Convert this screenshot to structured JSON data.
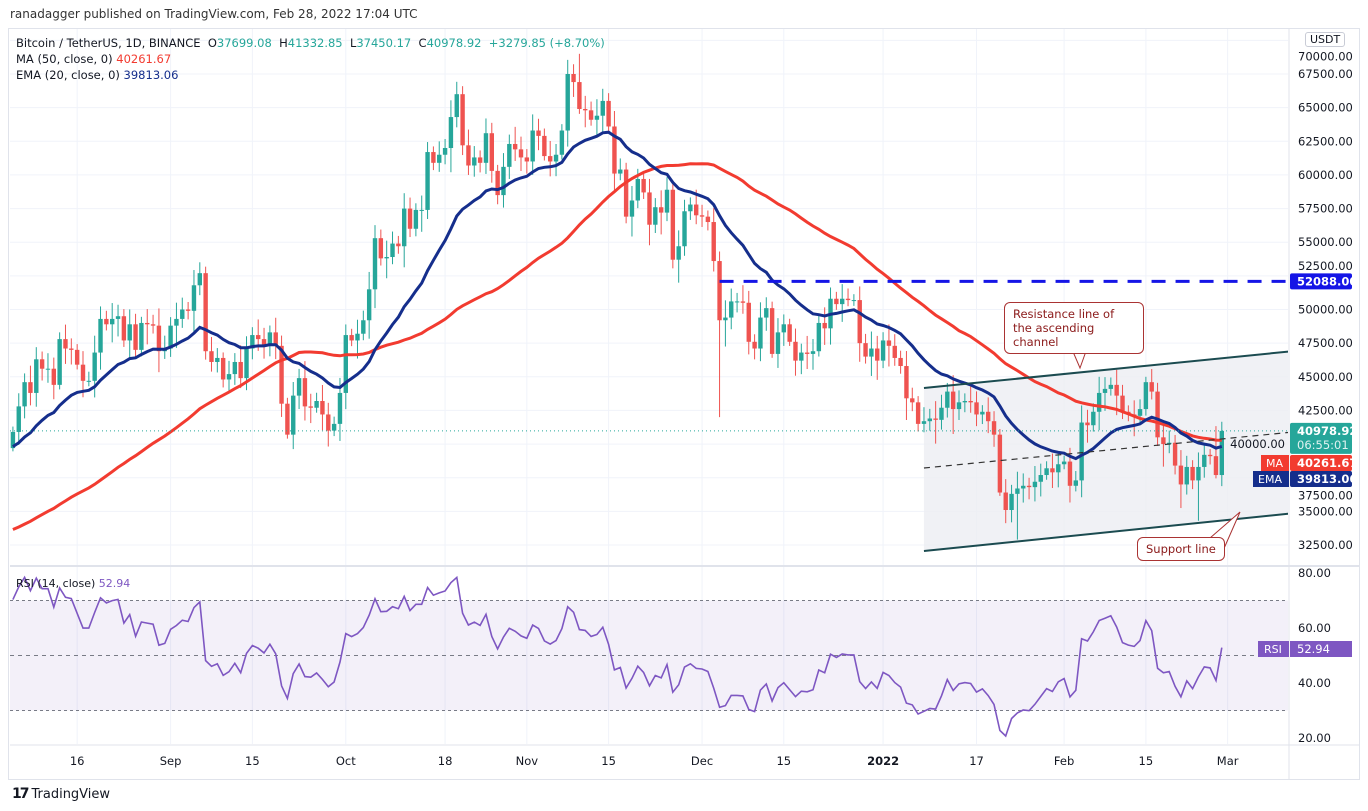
{
  "header": {
    "published": "ranadagger published on TradingView.com, Feb 28, 2022 17:04 UTC",
    "symbol": "Bitcoin / TetherUS, 1D, BINANCE",
    "o_label": "O",
    "o": "37699.08",
    "h_label": "H",
    "h": "41332.85",
    "l_label": "L",
    "l": "37450.17",
    "c_label": "C",
    "c": "40978.92",
    "change": "+3279.85 (+8.70%)",
    "ma_label": "MA (50, close, 0)",
    "ma_value": "40261.67",
    "ema_label": "EMA (20, close, 0)",
    "ema_value": "39813.06",
    "rsi_label": "RSI (14, close)",
    "rsi_value": "52.94"
  },
  "currency": "USDT",
  "axis_labels": {
    "price": "40978.92",
    "countdown": "06:55:01",
    "ma_tag": "MA",
    "ma": "40261.67",
    "ema_tag": "EMA",
    "ema": "39813.06",
    "level": "52088.00",
    "rsi_tag": "RSI",
    "rsi": "52.94"
  },
  "annotations": {
    "resistance": "Resistance line of the ascending channel",
    "support": "Support line"
  },
  "footer": {
    "brand": "TradingView"
  },
  "colors": {
    "up": "#26a69a",
    "down": "#ef5350",
    "ma": "#f23b30",
    "ema": "#152e8c",
    "rsi": "#7e57c2",
    "channel": "#1b4b50",
    "level": "#1515e6"
  },
  "chart_data": {
    "type": "candlestick",
    "title": "Bitcoin / TetherUS, 1D, BINANCE",
    "closes": [
      40900,
      42800,
      44600,
      43800,
      46300,
      45600,
      45600,
      44400,
      47800,
      47100,
      47000,
      45900,
      44700,
      44700,
      46800,
      49300,
      48900,
      49300,
      49500,
      47700,
      48900,
      47000,
      49000,
      48900,
      48800,
      46900,
      47100,
      48800,
      49300,
      50000,
      49900,
      51800,
      52700,
      46900,
      46100,
      46400,
      44800,
      45200,
      46100,
      44900,
      47100,
      48100,
      47800,
      47300,
      48300,
      47300,
      43000,
      40700,
      43600,
      44900,
      42800,
      42700,
      43200,
      42200,
      41000,
      41500,
      43800,
      48100,
      47700,
      48200,
      49200,
      51500,
      55300,
      53800,
      53900,
      54900,
      54700,
      57500,
      56000,
      57400,
      57400,
      61700,
      60900,
      61500,
      62000,
      64300,
      66000,
      62200,
      60700,
      61300,
      60900,
      63100,
      60300,
      58500,
      60600,
      62300,
      61900,
      61300,
      61000,
      63300,
      62900,
      61400,
      61000,
      61500,
      63300,
      67500,
      66900,
      64900,
      64800,
      64100,
      64400,
      65500,
      63600,
      60100,
      60400,
      56900,
      58100,
      59700,
      58700,
      56300,
      57600,
      57200,
      58900,
      53700,
      54700,
      57300,
      57800,
      57000,
      56900,
      56500,
      53600,
      49200,
      49400,
      50600,
      50600,
      50500,
      47600,
      47100,
      49400,
      50100,
      46700,
      48300,
      48900,
      47600,
      46200,
      46800,
      46700,
      46900,
      49000,
      48600,
      50800,
      50400,
      50800,
      50700,
      50700,
      47500,
      46500,
      47100,
      46200,
      47700,
      47300,
      46400,
      45800,
      43400,
      43100,
      41500,
      41700,
      41900,
      41800,
      42700,
      43900,
      42600,
      43100,
      43200,
      43100,
      42200,
      42400,
      41700,
      40700,
      36400,
      35100,
      36300,
      36700,
      36900,
      36800,
      37200,
      37700,
      38200,
      37900,
      38500,
      38700,
      36900,
      37300,
      41600,
      41400,
      42400,
      43800,
      44100,
      44400,
      43600,
      42400,
      42200,
      42100,
      42600,
      44600,
      43900,
      40500,
      40000,
      40100,
      38400,
      37000,
      38300,
      37300,
      38300,
      39200,
      39100,
      37699,
      40979
    ],
    "first_open": 39700,
    "low_overrides": {
      "121": 42000,
      "172": 32900,
      "203": 34300,
      "206": 37450
    },
    "high_overrides": {
      "97": 69000,
      "206": 41333
    },
    "x_ticks": [
      {
        "i": 11,
        "label": "16"
      },
      {
        "i": 27,
        "label": "Sep"
      },
      {
        "i": 41,
        "label": "15"
      },
      {
        "i": 57,
        "label": "Oct"
      },
      {
        "i": 74,
        "label": "18"
      },
      {
        "i": 88,
        "label": "Nov"
      },
      {
        "i": 102,
        "label": "15"
      },
      {
        "i": 118,
        "label": "Dec"
      },
      {
        "i": 132,
        "label": "15"
      },
      {
        "i": 149,
        "label": "2022"
      },
      {
        "i": 165,
        "label": "17"
      },
      {
        "i": 180,
        "label": "Feb"
      },
      {
        "i": 194,
        "label": "15"
      },
      {
        "i": 208,
        "label": "Mar"
      }
    ],
    "y_ticks": [
      "32500.00",
      "35000.00",
      "37500.00",
      "40000.00",
      "42500.00",
      "45000.00",
      "47500.00",
      "50000.00",
      "52500.00",
      "55000.00",
      "57500.00",
      "60000.00",
      "62500.00",
      "65000.00",
      "67500.00",
      "70000.00"
    ],
    "rsi_ticks": [
      "20.00",
      "40.00",
      "60.00",
      "80.00"
    ],
    "rsi_bands": [
      30,
      50,
      70
    ],
    "ma_period": 50,
    "ema_period": 20,
    "rsi_period": 14,
    "level_line": {
      "price": 52088,
      "from_i": 121
    },
    "channel": {
      "upper": [
        [
          156,
          44166
        ],
        [
          228,
          47288
        ]
      ],
      "lower": [
        [
          156,
          32054
        ],
        [
          228,
          35250
        ]
      ],
      "mid": [
        [
          156,
          38221
        ],
        [
          228,
          41268
        ]
      ]
    }
  }
}
